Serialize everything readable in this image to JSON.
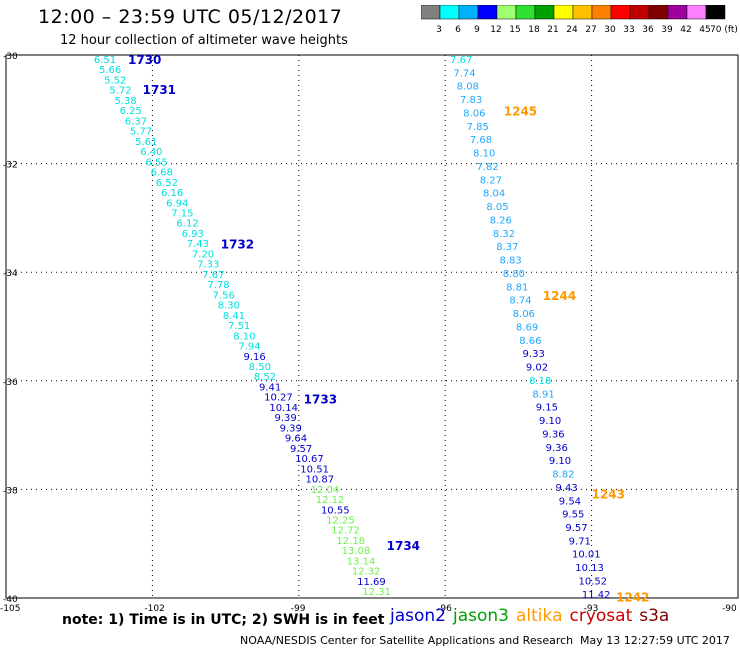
{
  "title": "12:00 – 23:59 UTC 05/12/2017",
  "subtitle": "12 hour collection of altimeter wave heights",
  "colorbar": {
    "labels": [
      "3",
      "6",
      "9",
      "12",
      "15",
      "18",
      "21",
      "24",
      "27",
      "30",
      "33",
      "36",
      "39",
      "42",
      "45",
      "70 (ft)"
    ],
    "colors": [
      "#808080",
      "#00ffff",
      "#00b0ff",
      "#0000ff",
      "#a0ff70",
      "#30e030",
      "#00a000",
      "#ffff00",
      "#ffc000",
      "#ff8000",
      "#ff0000",
      "#c00000",
      "#800000",
      "#a000a0",
      "#ff80ff",
      "#000000"
    ]
  },
  "axes": {
    "y_labels": [
      "-30",
      "-32",
      "-34",
      "-36",
      "-38",
      "-40"
    ],
    "x_labels": [
      "-105",
      "-102",
      "-99",
      "-96",
      "-93",
      "-90"
    ]
  },
  "colors": {
    "jason2": "#0000cc",
    "jason3": "#00a000",
    "altika": "#ff9900",
    "cryosat": "#cc0000",
    "s3a": "#800000",
    "cyan": "#00e0e0",
    "lightblue": "#20a8ff",
    "lightgreen": "#70ee50"
  },
  "chart_data": {
    "type": "scatter",
    "title": "12:00 – 23:59 UTC 05/12/2017",
    "subtitle": "12 hour collection of altimeter wave heights",
    "xlim": [
      -105,
      -90
    ],
    "ylim": [
      -40,
      -30
    ],
    "grid": true,
    "units": "ft",
    "tracks": [
      {
        "id": "west",
        "labels": [
          {
            "text": "1730",
            "lon": -102.5,
            "lat": -30.0,
            "color": "#0000cc"
          },
          {
            "text": "1731",
            "lon": -102.2,
            "lat": -30.55,
            "color": "#0000cc"
          },
          {
            "text": "1732",
            "lon": -100.6,
            "lat": -33.4,
            "color": "#0000cc"
          },
          {
            "text": "1733",
            "lon": -98.9,
            "lat": -36.25,
            "color": "#0000cc"
          },
          {
            "text": "1734",
            "lon": -97.2,
            "lat": -38.95,
            "color": "#0000cc"
          }
        ],
        "start": [
          -103.2,
          -30.0
        ],
        "end": [
          -97.7,
          -39.8
        ],
        "values": [
          "6.51",
          "5.66",
          "5.52",
          "5.72",
          "5.38",
          "6.25",
          "6.37",
          "5.77",
          "5.61",
          "6.40",
          "6.55",
          "6.68",
          "6.52",
          "6.16",
          "6.94",
          "7.15",
          "6.12",
          "6.93",
          "7.43",
          "7.20",
          "7.33",
          "7.67",
          "7.78",
          "7.56",
          "8.30",
          "8.41",
          "7.51",
          "8.10",
          "7.94",
          "9.16",
          "8.50",
          "8.52",
          "9.41",
          "10.27",
          "10.14",
          "9.39",
          "9.39",
          "9.64",
          "9.57",
          "10.67",
          "10.51",
          "10.87",
          "12.04",
          "12.12",
          "10.55",
          "12.25",
          "12.72",
          "12.18",
          "13.08",
          "13.14",
          "12.32",
          "11.69",
          "12.31"
        ],
        "colors": [
          "c",
          "c",
          "c",
          "c",
          "c",
          "c",
          "c",
          "c",
          "c",
          "c",
          "c",
          "c",
          "c",
          "c",
          "c",
          "c",
          "c",
          "c",
          "c",
          "c",
          "c",
          "c",
          "c",
          "c",
          "c",
          "c",
          "c",
          "c",
          "c",
          "b",
          "c",
          "c",
          "b",
          "b",
          "b",
          "b",
          "b",
          "b",
          "b",
          "b",
          "b",
          "b",
          "g",
          "g",
          "b",
          "g",
          "g",
          "g",
          "g",
          "g",
          "g",
          "b",
          "g"
        ]
      },
      {
        "id": "east",
        "labels": [
          {
            "text": "1245",
            "lon": -94.8,
            "lat": -30.95,
            "color": "#ff9900"
          },
          {
            "text": "1244",
            "lon": -94.0,
            "lat": -34.35,
            "color": "#ff9900"
          },
          {
            "text": "1243",
            "lon": -93.0,
            "lat": -38.0,
            "color": "#ff9900"
          },
          {
            "text": "1242",
            "lon": -92.5,
            "lat": -39.9,
            "color": "#ff9900"
          }
        ],
        "start": [
          -95.9,
          -30.0
        ],
        "end": [
          -93.2,
          -39.85
        ],
        "values": [
          "7.67",
          "7.74",
          "8.08",
          "7.83",
          "8.06",
          "7.85",
          "7.68",
          "8.10",
          "7.82",
          "8.27",
          "8.04",
          "8.05",
          "8.26",
          "8.32",
          "8.37",
          "8.83",
          "8.80",
          "8.81",
          "8.74",
          "8.06",
          "8.69",
          "8.66",
          "9.33",
          "9.02",
          "8.18",
          "8.91",
          "9.15",
          "9.10",
          "9.36",
          "9.36",
          "9.10",
          "8.82",
          "9.43",
          "9.54",
          "9.55",
          "9.57",
          "9.71",
          "10.01",
          "10.13",
          "10.52",
          "11.42"
        ],
        "colors": [
          "c",
          "l",
          "l",
          "l",
          "l",
          "l",
          "l",
          "l",
          "l",
          "l",
          "l",
          "l",
          "l",
          "l",
          "l",
          "l",
          "l",
          "l",
          "l",
          "l",
          "l",
          "l",
          "b",
          "b",
          "c",
          "l",
          "b",
          "b",
          "b",
          "b",
          "b",
          "l",
          "b",
          "b",
          "b",
          "b",
          "b",
          "b",
          "b",
          "b",
          "b"
        ]
      }
    ]
  },
  "note": "note:  1) Time is in UTC; 2) SWH is in feet",
  "legend": [
    {
      "label": "jason2",
      "color": "#0000cc"
    },
    {
      "label": "jason3",
      "color": "#00a000"
    },
    {
      "label": "altika",
      "color": "#ff9900"
    },
    {
      "label": "cryosat",
      "color": "#cc0000"
    },
    {
      "label": "s3a",
      "color": "#800000"
    }
  ],
  "credit": "NOAA/NESDIS Center for Satellite Applications and Research",
  "timestamp": "May 13 12:27:59 UTC 2017"
}
